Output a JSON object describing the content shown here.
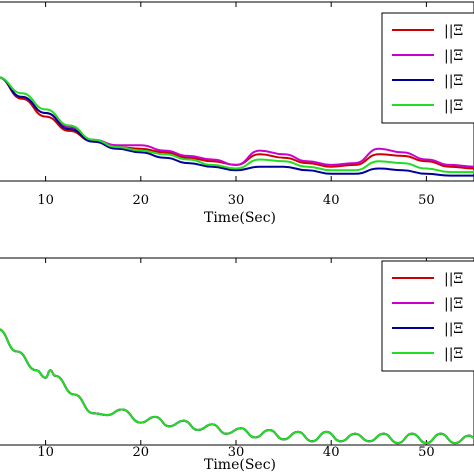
{
  "chart_data": [
    {
      "type": "line",
      "xlabel": "Time(Sec)",
      "xlim": [
        5,
        55
      ],
      "ylim": [
        0,
        1
      ],
      "xticks": [
        10,
        20,
        30,
        40,
        50
      ],
      "grid": false,
      "legend_position": "top-right",
      "series": [
        {
          "name": "||Ξ",
          "color": "#cc0000",
          "x": [
            5,
            7.5,
            10,
            12.5,
            15,
            17.5,
            20,
            22.5,
            25,
            27.5,
            30,
            32.5,
            35,
            37.5,
            40,
            42.5,
            45,
            47.5,
            50,
            52.5,
            55
          ],
          "y": [
            0.58,
            0.46,
            0.36,
            0.28,
            0.22,
            0.19,
            0.18,
            0.16,
            0.13,
            0.11,
            0.09,
            0.15,
            0.13,
            0.1,
            0.08,
            0.09,
            0.15,
            0.14,
            0.11,
            0.08,
            0.07
          ]
        },
        {
          "name": "||Ξ",
          "color": "#cc00cc",
          "x": [
            5,
            7.5,
            10,
            12.5,
            15,
            17.5,
            20,
            22.5,
            25,
            27.5,
            30,
            32.5,
            35,
            37.5,
            40,
            42.5,
            45,
            47.5,
            50,
            52.5,
            55
          ],
          "y": [
            0.58,
            0.47,
            0.38,
            0.3,
            0.23,
            0.2,
            0.2,
            0.17,
            0.14,
            0.12,
            0.09,
            0.17,
            0.15,
            0.11,
            0.09,
            0.1,
            0.18,
            0.16,
            0.12,
            0.09,
            0.08
          ]
        },
        {
          "name": "||Ξ",
          "color": "#000099",
          "x": [
            5,
            7.5,
            10,
            12.5,
            15,
            17.5,
            20,
            22.5,
            25,
            27.5,
            30,
            32.5,
            35,
            37.5,
            40,
            42.5,
            45,
            47.5,
            50,
            52.5,
            55
          ],
          "y": [
            0.58,
            0.47,
            0.38,
            0.29,
            0.22,
            0.18,
            0.16,
            0.13,
            0.1,
            0.08,
            0.06,
            0.08,
            0.08,
            0.06,
            0.04,
            0.04,
            0.07,
            0.06,
            0.04,
            0.03,
            0.03
          ]
        },
        {
          "name": "||Ξ",
          "color": "#22dd22",
          "x": [
            5,
            7.5,
            10,
            12.5,
            15,
            17.5,
            20,
            22.5,
            25,
            27.5,
            30,
            32.5,
            35,
            37.5,
            40,
            42.5,
            45,
            47.5,
            50,
            52.5,
            55
          ],
          "y": [
            0.58,
            0.49,
            0.4,
            0.31,
            0.23,
            0.19,
            0.17,
            0.15,
            0.12,
            0.09,
            0.07,
            0.12,
            0.11,
            0.08,
            0.06,
            0.06,
            0.11,
            0.1,
            0.07,
            0.05,
            0.05
          ]
        }
      ]
    },
    {
      "type": "line",
      "xlabel": "Time(Sec)",
      "xlim": [
        5,
        55
      ],
      "ylim": [
        0,
        1
      ],
      "xticks": [
        10,
        20,
        30,
        40,
        50
      ],
      "grid": false,
      "legend_position": "top-right",
      "series": [
        {
          "name": "||Ξ",
          "color": "#cc0000",
          "x": [
            5,
            7,
            9,
            10,
            10.5,
            11,
            13,
            15,
            16.5,
            18,
            20,
            21.5,
            23,
            24.5,
            26,
            27.5,
            29,
            30.5,
            32,
            33.5,
            35,
            36.5,
            38,
            39.5,
            41,
            42.5,
            44,
            45.5,
            47,
            48.5,
            50,
            51.5,
            53,
            54.5,
            55
          ],
          "y": [
            0.62,
            0.5,
            0.4,
            0.36,
            0.4,
            0.37,
            0.27,
            0.17,
            0.16,
            0.19,
            0.12,
            0.15,
            0.1,
            0.13,
            0.08,
            0.11,
            0.06,
            0.09,
            0.04,
            0.08,
            0.03,
            0.07,
            0.02,
            0.07,
            0.02,
            0.06,
            0.02,
            0.06,
            0.01,
            0.06,
            0.01,
            0.06,
            0.01,
            0.05,
            0.04
          ]
        },
        {
          "name": "||Ξ",
          "color": "#cc00cc",
          "x": [
            5,
            7,
            9,
            10,
            10.5,
            11,
            13,
            15,
            16.5,
            18,
            20,
            21.5,
            23,
            24.5,
            26,
            27.5,
            29,
            30.5,
            32,
            33.5,
            35,
            36.5,
            38,
            39.5,
            41,
            42.5,
            44,
            45.5,
            47,
            48.5,
            50,
            51.5,
            53,
            54.5,
            55
          ],
          "y": [
            0.62,
            0.5,
            0.4,
            0.36,
            0.4,
            0.37,
            0.27,
            0.17,
            0.16,
            0.19,
            0.12,
            0.15,
            0.1,
            0.13,
            0.08,
            0.11,
            0.06,
            0.09,
            0.04,
            0.08,
            0.03,
            0.07,
            0.02,
            0.07,
            0.02,
            0.06,
            0.02,
            0.06,
            0.01,
            0.06,
            0.01,
            0.06,
            0.01,
            0.05,
            0.04
          ]
        },
        {
          "name": "||Ξ",
          "color": "#000099",
          "x": [
            5,
            7,
            9,
            10,
            10.5,
            11,
            13,
            15,
            16.5,
            18,
            20,
            21.5,
            23,
            24.5,
            26,
            27.5,
            29,
            30.5,
            32,
            33.5,
            35,
            36.5,
            38,
            39.5,
            41,
            42.5,
            44,
            45.5,
            47,
            48.5,
            50,
            51.5,
            53,
            54.5,
            55
          ],
          "y": [
            0.62,
            0.5,
            0.4,
            0.36,
            0.4,
            0.37,
            0.27,
            0.17,
            0.16,
            0.19,
            0.12,
            0.15,
            0.1,
            0.13,
            0.08,
            0.11,
            0.06,
            0.09,
            0.04,
            0.08,
            0.03,
            0.07,
            0.02,
            0.07,
            0.02,
            0.06,
            0.02,
            0.06,
            0.01,
            0.06,
            0.01,
            0.06,
            0.01,
            0.05,
            0.04
          ]
        },
        {
          "name": "||Ξ",
          "color": "#22dd22",
          "x": [
            5,
            7,
            9,
            10,
            10.5,
            11,
            13,
            15,
            16.5,
            18,
            20,
            21.5,
            23,
            24.5,
            26,
            27.5,
            29,
            30.5,
            32,
            33.5,
            35,
            36.5,
            38,
            39.5,
            41,
            42.5,
            44,
            45.5,
            47,
            48.5,
            50,
            51.5,
            53,
            54.5,
            55
          ],
          "y": [
            0.62,
            0.5,
            0.4,
            0.36,
            0.4,
            0.37,
            0.27,
            0.17,
            0.16,
            0.19,
            0.12,
            0.15,
            0.1,
            0.13,
            0.08,
            0.11,
            0.06,
            0.09,
            0.04,
            0.08,
            0.03,
            0.07,
            0.02,
            0.07,
            0.02,
            0.06,
            0.02,
            0.06,
            0.01,
            0.06,
            0.01,
            0.06,
            0.01,
            0.05,
            0.04
          ]
        }
      ]
    }
  ]
}
